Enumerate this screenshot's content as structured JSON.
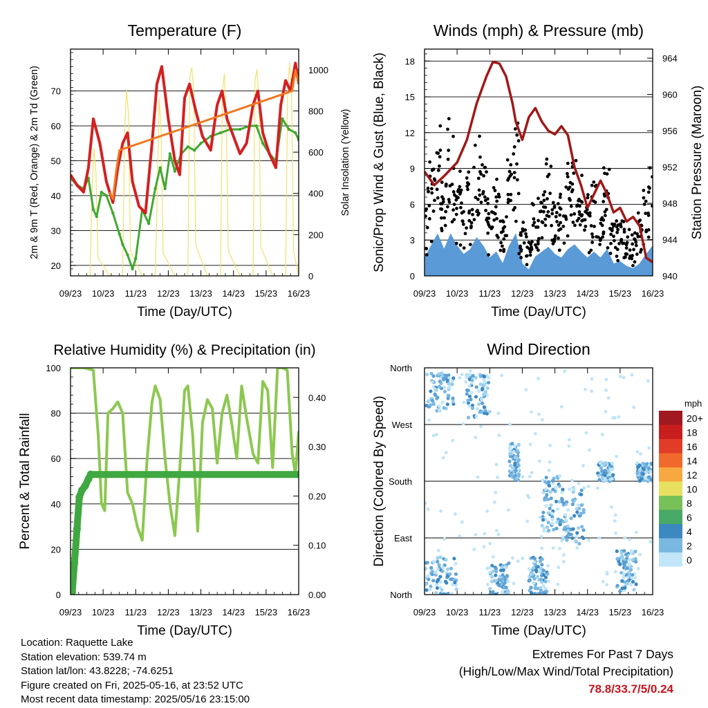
{
  "footer": {
    "location": "Location: Raquette Lake",
    "elevation": "Station elevation: 539.74 m",
    "latlon": "Station lat/lon: 43.8228; -74.6251",
    "created": "Figure created on Fri, 2025-05-16, at 23:52 UTC",
    "recent": "Most recent data timestamp: 2025/05/16 23:15:00",
    "extremes_title": "Extremes For Past 7 Days",
    "extremes_sub": "(High/Low/Max Wind/Total Precipitation)",
    "extremes_values": "78.8/33.7/5/0.24",
    "extremes_color": "#c8141e"
  },
  "chart_data": [
    {
      "id": "temperature",
      "type": "line",
      "title": "Temperature (F)",
      "xlabel": "Time (Day/UTC)",
      "ylabel": "2m & 9m T (Red, Orange) & 2m Td (Green)",
      "y2label": "Solar Insolation (Yellow)",
      "x_ticks": [
        "09/23",
        "10/23",
        "11/23",
        "12/23",
        "13/23",
        "14/23",
        "15/23",
        "16/23"
      ],
      "x_range": [
        0,
        7
      ],
      "ylim": [
        17,
        82
      ],
      "y_ticks": [
        20,
        30,
        40,
        50,
        60,
        70
      ],
      "y2lim": [
        0,
        1100
      ],
      "y2_ticks": [
        0,
        200,
        400,
        600,
        800,
        1000
      ],
      "grid": true,
      "series": [
        {
          "name": "2m T",
          "color": "#d42020",
          "axis": "left",
          "x": [
            0,
            0.2,
            0.4,
            0.55,
            0.7,
            0.9,
            1.1,
            1.3,
            1.45,
            1.6,
            1.75,
            1.9,
            2.1,
            2.3,
            2.5,
            2.65,
            2.8,
            3.0,
            3.2,
            3.35,
            3.5,
            3.65,
            3.85,
            4.05,
            4.3,
            4.5,
            4.65,
            4.8,
            5.0,
            5.2,
            5.4,
            5.6,
            5.75,
            5.9,
            6.1,
            6.3,
            6.45,
            6.6,
            6.75,
            6.9,
            7.0
          ],
          "y": [
            46,
            43,
            41,
            48,
            62,
            55,
            44,
            38,
            48,
            55,
            58,
            44,
            37,
            35,
            55,
            72,
            77,
            62,
            50,
            46,
            68,
            72,
            64,
            57,
            53,
            66,
            70,
            62,
            57,
            52,
            55,
            66,
            70,
            58,
            52,
            48,
            66,
            73,
            70,
            78,
            72
          ]
        },
        {
          "name": "9m T",
          "color": "#f07820",
          "axis": "left",
          "x": [
            1.2,
            1.3,
            1.4,
            1.5,
            6.8,
            6.9,
            7.0
          ],
          "y": [
            41,
            39,
            47,
            53,
            70,
            76,
            72
          ]
        },
        {
          "name": "2m Td",
          "color": "#40a830",
          "axis": "left",
          "x": [
            0,
            0.2,
            0.4,
            0.55,
            0.7,
            0.8,
            0.95,
            1.1,
            1.3,
            1.5,
            1.6,
            1.75,
            1.9,
            2.0,
            2.2,
            2.4,
            2.6,
            2.75,
            2.9,
            3.05,
            3.2,
            3.4,
            3.6,
            3.8,
            4.0,
            4.3,
            4.6,
            4.9,
            5.2,
            5.5,
            5.7,
            5.9,
            6.1,
            6.3,
            6.5,
            6.7,
            6.9,
            7.0
          ],
          "y": [
            45,
            43,
            42,
            45,
            36,
            34,
            41,
            40,
            35,
            29,
            26,
            23,
            19,
            22,
            36,
            32,
            42,
            48,
            42,
            52,
            47,
            52,
            54,
            53,
            55,
            57,
            58,
            59,
            59,
            60,
            60,
            55,
            52,
            50,
            62,
            59,
            58,
            56
          ]
        },
        {
          "name": "Solar Insolation",
          "color": "#f5e06a",
          "axis": "right",
          "x": [
            0,
            0.6,
            0.66,
            0.72,
            0.78,
            0.84,
            1.2,
            1.6,
            1.66,
            1.72,
            1.78,
            1.84,
            2.2,
            2.6,
            2.66,
            2.72,
            2.78,
            2.84,
            3.2,
            3.6,
            3.66,
            3.72,
            3.78,
            3.84,
            4.2,
            4.6,
            4.66,
            4.72,
            4.78,
            4.84,
            5.2,
            5.6,
            5.66,
            5.72,
            5.78,
            5.84,
            6.2,
            6.6,
            6.66,
            6.72,
            6.78,
            6.84,
            7.0
          ],
          "y": [
            0,
            0,
            420,
            620,
            500,
            90,
            0,
            0,
            720,
            900,
            780,
            120,
            0,
            0,
            400,
            860,
            700,
            110,
            0,
            0,
            960,
            1010,
            900,
            150,
            0,
            0,
            900,
            980,
            760,
            120,
            0,
            0,
            950,
            1000,
            850,
            140,
            0,
            0,
            900,
            1030,
            900,
            120,
            0
          ]
        }
      ]
    },
    {
      "id": "winds",
      "type": "line",
      "title": "Winds (mph) & Pressure (mb)",
      "xlabel": "Time (Day/UTC)",
      "ylabel": "Sonic/Prop Wind & Gust (Blue, Black)",
      "y2label": "Station Pressure (Maroon)",
      "x_ticks": [
        "09/23",
        "10/23",
        "11/23",
        "12/23",
        "13/23",
        "14/23",
        "15/23",
        "16/23"
      ],
      "x_range": [
        0,
        7
      ],
      "ylim": [
        0,
        19
      ],
      "y_ticks": [
        0,
        3,
        6,
        9,
        12,
        15,
        18
      ],
      "y2lim": [
        940,
        965
      ],
      "y2_ticks": [
        940,
        944,
        948,
        952,
        956,
        960,
        964
      ],
      "grid": true,
      "series": [
        {
          "name": "Station Pressure",
          "color": "#a01818",
          "axis": "right",
          "x": [
            0,
            0.3,
            0.6,
            1.0,
            1.3,
            1.6,
            1.9,
            2.1,
            2.3,
            2.5,
            2.7,
            2.8,
            3.0,
            3.2,
            3.4,
            3.6,
            3.8,
            4.0,
            4.2,
            4.4,
            4.6,
            4.8,
            5.0,
            5.2,
            5.4,
            5.6,
            5.8,
            6.0,
            6.2,
            6.4,
            6.6,
            6.8,
            7.0
          ],
          "y": [
            951.5,
            950,
            951,
            952.5,
            955,
            959,
            962,
            963.6,
            963.4,
            962,
            959,
            957,
            955,
            957.5,
            958.5,
            957,
            956,
            955.6,
            956.5,
            955.5,
            952,
            950,
            947.5,
            949,
            950.5,
            949,
            947,
            947.5,
            946,
            946.5,
            945.5,
            942,
            941.5
          ]
        },
        {
          "name": "Wind",
          "color": "#5a9ad6",
          "axis": "left",
          "x": [
            0,
            0.2,
            0.4,
            0.6,
            0.8,
            1.0,
            1.2,
            1.4,
            1.6,
            1.8,
            2.0,
            2.2,
            2.4,
            2.6,
            2.8,
            3.0,
            3.2,
            3.4,
            3.6,
            3.8,
            4.0,
            4.2,
            4.4,
            4.6,
            4.8,
            5.0,
            5.2,
            5.4,
            5.6,
            5.8,
            6.0,
            6.2,
            6.4,
            6.6,
            6.8,
            7.0
          ],
          "y": [
            1.5,
            2.5,
            3.5,
            2.2,
            3.5,
            2.5,
            1.8,
            2.2,
            3.2,
            2.5,
            1.5,
            2.0,
            1.0,
            2.5,
            3.5,
            1.0,
            0.5,
            1.6,
            2.0,
            2.4,
            1.8,
            1.5,
            2.2,
            2.6,
            2.0,
            1.5,
            2.0,
            1.5,
            2.2,
            1.0,
            1.2,
            0.8,
            0.6,
            1.0,
            1.8,
            2.5
          ]
        }
      ]
    },
    {
      "id": "humidity",
      "type": "line",
      "title": "Relative Humidity (%) & Precipitation (in)",
      "xlabel": "Time (Day/UTC)",
      "ylabel": "Percent & Total Rainfall",
      "x_ticks": [
        "09/23",
        "10/23",
        "11/23",
        "12/23",
        "13/23",
        "14/23",
        "15/23",
        "16/23"
      ],
      "x_range": [
        0,
        7
      ],
      "ylim": [
        0,
        100
      ],
      "y_ticks": [
        0,
        20,
        40,
        60,
        80,
        100
      ],
      "y2lim": [
        0,
        0.46
      ],
      "y2_ticks": [
        "0.00",
        "0.10",
        "0.20",
        "0.30",
        "0.40"
      ],
      "grid": true,
      "series": [
        {
          "name": "Relative Humidity",
          "color": "#8cc850",
          "axis": "left",
          "x": [
            0,
            0.4,
            0.7,
            0.85,
            0.95,
            1.05,
            1.15,
            1.3,
            1.45,
            1.6,
            1.75,
            1.9,
            2.05,
            2.2,
            2.35,
            2.5,
            2.6,
            2.75,
            2.9,
            3.05,
            3.2,
            3.35,
            3.5,
            3.6,
            3.75,
            3.9,
            4.05,
            4.2,
            4.35,
            4.5,
            4.65,
            4.8,
            4.95,
            5.1,
            5.25,
            5.4,
            5.6,
            5.75,
            5.9,
            6.05,
            6.2,
            6.35,
            6.5,
            6.65,
            6.8,
            6.9,
            7.0
          ],
          "y": [
            100,
            100,
            99,
            70,
            40,
            37,
            80,
            82,
            85,
            80,
            45,
            40,
            30,
            24,
            60,
            85,
            92,
            86,
            60,
            40,
            26,
            55,
            90,
            92,
            70,
            28,
            76,
            86,
            82,
            58,
            80,
            88,
            75,
            60,
            92,
            78,
            62,
            58,
            94,
            90,
            56,
            100,
            100,
            99,
            62,
            53,
            72
          ]
        },
        {
          "name": "Total Precipitation",
          "color": "#40a840",
          "axis": "left",
          "x": [
            0,
            0.05,
            0.12,
            0.2,
            0.27,
            0.35,
            0.45,
            0.55,
            0.62,
            7.0
          ],
          "y": [
            0,
            1,
            14,
            29,
            43,
            46,
            48,
            51,
            53,
            53
          ]
        }
      ]
    },
    {
      "id": "direction",
      "type": "scatter",
      "title": "Wind Direction",
      "xlabel": "Time (Day/UTC)",
      "ylabel": "Direction (Colored By Speed)",
      "x_ticks": [
        "09/23",
        "10/23",
        "11/23",
        "12/23",
        "13/23",
        "14/23",
        "15/23",
        "16/23"
      ],
      "x_range": [
        0,
        7
      ],
      "y_ticks": [
        "North",
        "East",
        "South",
        "West",
        "North"
      ],
      "ylim": [
        0,
        360
      ],
      "legend_title": "mph",
      "legend_position": "right",
      "legend": [
        {
          "label": "20+",
          "color": "#a01820"
        },
        {
          "label": "18",
          "color": "#c81e1e"
        },
        {
          "label": "16",
          "color": "#e03c28"
        },
        {
          "label": "14",
          "color": "#f06a2c"
        },
        {
          "label": "12",
          "color": "#f8a840"
        },
        {
          "label": "10",
          "color": "#e8e060"
        },
        {
          "label": "8",
          "color": "#78c058"
        },
        {
          "label": "6",
          "color": "#48a868"
        },
        {
          "label": "4",
          "color": "#3c88c0"
        },
        {
          "label": "2",
          "color": "#7ab8e2"
        },
        {
          "label": "0",
          "color": "#c0e6f8"
        }
      ],
      "clusters": [
        {
          "x": [
            0.05,
            0.9
          ],
          "y": [
            290,
            355
          ]
        },
        {
          "x": [
            1.3,
            2.0
          ],
          "y": [
            280,
            350
          ]
        },
        {
          "x": [
            0.0,
            1.0
          ],
          "y": [
            0,
            60
          ]
        },
        {
          "x": [
            2.0,
            2.6
          ],
          "y": [
            0,
            50
          ]
        },
        {
          "x": [
            2.6,
            2.9
          ],
          "y": [
            180,
            240
          ]
        },
        {
          "x": [
            3.6,
            4.2
          ],
          "y": [
            100,
            190
          ]
        },
        {
          "x": [
            4.2,
            4.9
          ],
          "y": [
            80,
            170
          ]
        },
        {
          "x": [
            5.3,
            5.8
          ],
          "y": [
            180,
            210
          ]
        },
        {
          "x": [
            6.5,
            7.0
          ],
          "y": [
            180,
            210
          ]
        },
        {
          "x": [
            5.9,
            6.5
          ],
          "y": [
            0,
            70
          ]
        },
        {
          "x": [
            3.2,
            3.8
          ],
          "y": [
            0,
            60
          ]
        }
      ]
    }
  ]
}
